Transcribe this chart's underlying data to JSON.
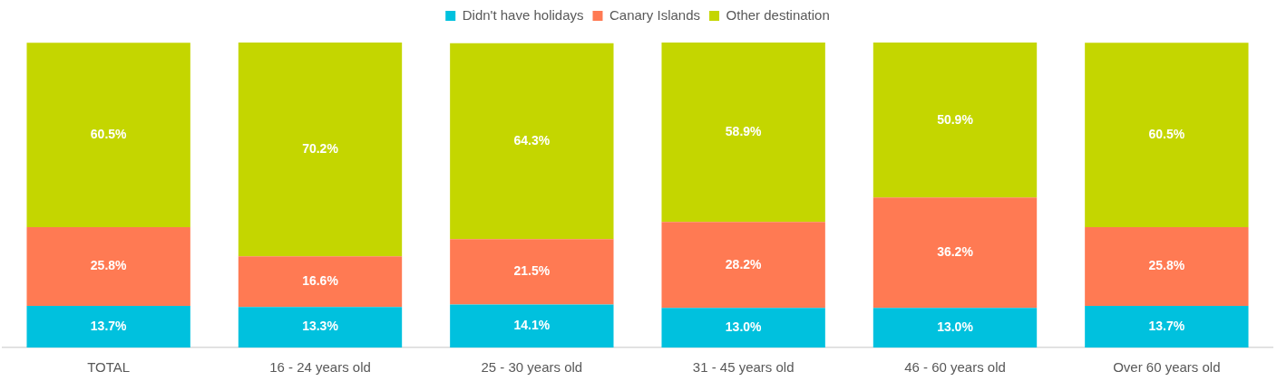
{
  "chart_data": {
    "type": "bar",
    "stacked": true,
    "categories": [
      "TOTAL",
      "16 - 24 years old",
      "25 - 30 years old",
      "31 - 45 years old",
      "46 - 60 years old",
      "Over 60 years old"
    ],
    "series": [
      {
        "name": "Didn't have holidays",
        "color": "#00c1de",
        "values": [
          13.7,
          13.3,
          14.1,
          13.0,
          13.0,
          13.7
        ],
        "value_labels": [
          "13.7%",
          "13.3%",
          "14.1%",
          "13.0%",
          "13.0%",
          "13.7%"
        ]
      },
      {
        "name": "Canary Islands",
        "color": "#ff7a53",
        "values": [
          25.8,
          16.6,
          21.5,
          28.2,
          36.2,
          25.8
        ],
        "value_labels": [
          "25.8%",
          "16.6%",
          "21.5%",
          "28.2%",
          "36.2%",
          "25.8%"
        ]
      },
      {
        "name": "Other destination",
        "color": "#c4d600",
        "values": [
          60.5,
          70.2,
          64.3,
          58.9,
          50.9,
          60.5
        ],
        "value_labels": [
          "60.5%",
          "70.2%",
          "64.3%",
          "58.9%",
          "50.9%",
          "60.5%"
        ]
      }
    ],
    "legend": "top",
    "tick_labels": "x"
  }
}
